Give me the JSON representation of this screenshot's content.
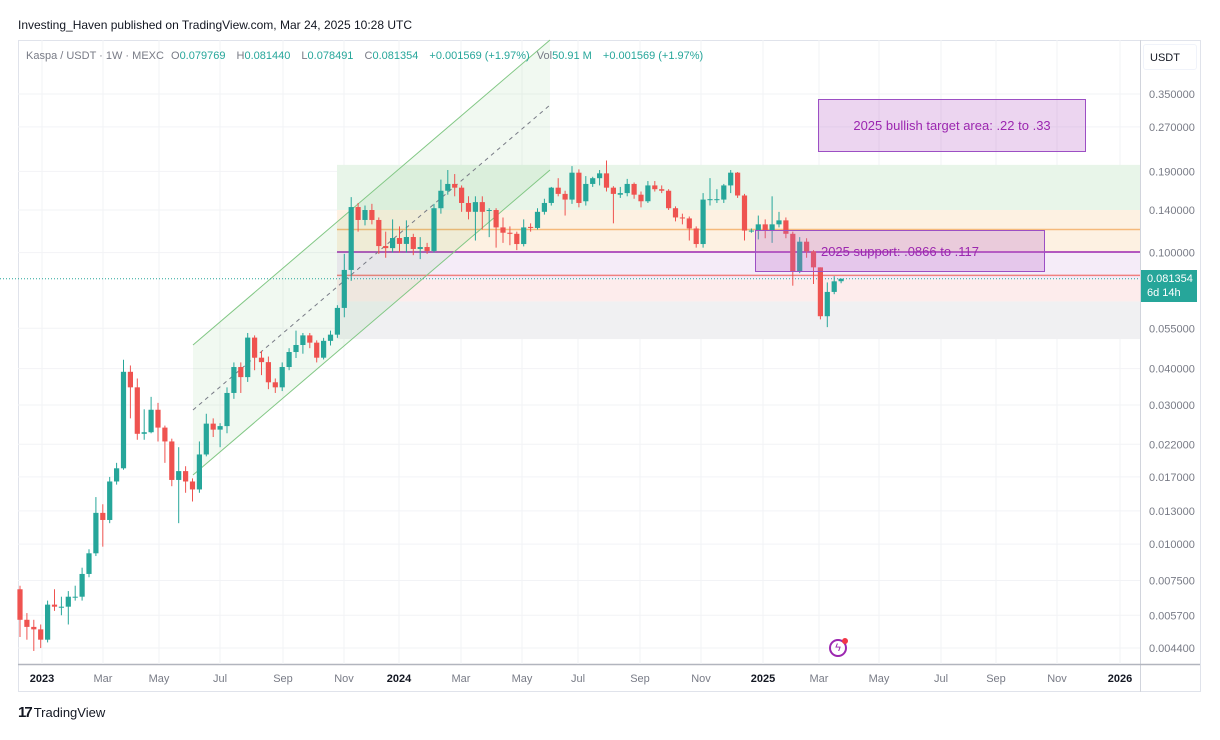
{
  "header": {
    "published": "Investing_Haven published on TradingView.com, Mar 24, 2025 10:28 UTC"
  },
  "legend": {
    "symbol": "Kaspa / USDT · 1W · MEXC",
    "o_label": "O",
    "o": "0.079769",
    "h_label": "H",
    "h": "0.081440",
    "l_label": "L",
    "l": "0.078491",
    "c_label": "C",
    "c": "0.081354",
    "change": "+0.001569 (+1.97%)",
    "vol_label": "Vol",
    "vol": "50.91 M",
    "vol_change": "+0.001569 (+1.97%)"
  },
  "price_axis": {
    "currency": "USDT",
    "last_price": "0.081354",
    "countdown": "6d 14h"
  },
  "annotations": {
    "target": "2025 bullish target area: .22 to .33",
    "support": "2025 support: .0866 to .117"
  },
  "footer": {
    "brand": "TradingView"
  },
  "colors": {
    "up": "#26a69a",
    "down": "#ef5350",
    "annotation": "#9c27b0"
  },
  "chart_data": {
    "type": "candlestick",
    "title": "Kaspa / USDT · 1W · MEXC",
    "interval": "1W",
    "y_scale": "log",
    "ylim": [
      0.0044,
      0.35
    ],
    "grid": true,
    "y_ticks": [
      "0.350000",
      "0.270000",
      "0.190000",
      "0.140000",
      "0.100000",
      "0.055000",
      "0.040000",
      "0.030000",
      "0.022000",
      "0.017000",
      "0.013000",
      "0.010000",
      "0.007500",
      "0.005700",
      "0.004400"
    ],
    "x_ticks": [
      "2023",
      "Mar",
      "May",
      "Jul",
      "Sep",
      "Nov",
      "2024",
      "Mar",
      "May",
      "Jul",
      "Sep",
      "Nov",
      "2025",
      "Mar",
      "May",
      "Jul",
      "Sep",
      "Nov",
      "2026"
    ],
    "ohlc_fields": [
      "open",
      "high",
      "low",
      "close"
    ],
    "candles": [
      [
        0.007,
        0.0072,
        0.0048,
        0.0055
      ],
      [
        0.0055,
        0.0058,
        0.0047,
        0.0052
      ],
      [
        0.0052,
        0.0055,
        0.0043,
        0.0051
      ],
      [
        0.0051,
        0.0053,
        0.0044,
        0.0047
      ],
      [
        0.0047,
        0.0064,
        0.0046,
        0.0062
      ],
      [
        0.0062,
        0.007,
        0.0059,
        0.0061
      ],
      [
        0.00605,
        0.0066,
        0.0057,
        0.0061
      ],
      [
        0.0061,
        0.0069,
        0.0053,
        0.0066
      ],
      [
        0.0066,
        0.0072,
        0.0064,
        0.0066
      ],
      [
        0.0066,
        0.0083,
        0.0064,
        0.0079
      ],
      [
        0.0079,
        0.0096,
        0.0077,
        0.0093
      ],
      [
        0.0093,
        0.0145,
        0.0091,
        0.0128
      ],
      [
        0.0128,
        0.0137,
        0.0098,
        0.0121
      ],
      [
        0.0121,
        0.017,
        0.0118,
        0.0164
      ],
      [
        0.0164,
        0.019,
        0.016,
        0.0182
      ],
      [
        0.0182,
        0.0429,
        0.018,
        0.039
      ],
      [
        0.039,
        0.041,
        0.027,
        0.0345
      ],
      [
        0.0345,
        0.037,
        0.0228,
        0.0239
      ],
      [
        0.0239,
        0.029,
        0.0228,
        0.0242
      ],
      [
        0.0242,
        0.032,
        0.024,
        0.0289
      ],
      [
        0.0289,
        0.0305,
        0.0225,
        0.0251
      ],
      [
        0.0251,
        0.0255,
        0.019,
        0.0225
      ],
      [
        0.0225,
        0.023,
        0.0158,
        0.0166
      ],
      [
        0.0166,
        0.0215,
        0.0118,
        0.0178
      ],
      [
        0.0178,
        0.0185,
        0.015,
        0.0164
      ],
      [
        0.0164,
        0.0168,
        0.014,
        0.0154
      ],
      [
        0.0154,
        0.0225,
        0.015,
        0.0203
      ],
      [
        0.0203,
        0.028,
        0.02,
        0.0259
      ],
      [
        0.0259,
        0.027,
        0.0233,
        0.0247
      ],
      [
        0.0247,
        0.026,
        0.0215,
        0.0254
      ],
      [
        0.0254,
        0.0345,
        0.024,
        0.033
      ],
      [
        0.033,
        0.042,
        0.0315,
        0.0405
      ],
      [
        0.0405,
        0.042,
        0.033,
        0.0374
      ],
      [
        0.0374,
        0.053,
        0.036,
        0.0511
      ],
      [
        0.0511,
        0.052,
        0.0395,
        0.0436
      ],
      [
        0.0436,
        0.046,
        0.038,
        0.0421
      ],
      [
        0.0421,
        0.044,
        0.034,
        0.0359
      ],
      [
        0.0359,
        0.037,
        0.033,
        0.0345
      ],
      [
        0.0345,
        0.042,
        0.0335,
        0.0405
      ],
      [
        0.0405,
        0.047,
        0.0395,
        0.0456
      ],
      [
        0.0456,
        0.054,
        0.0435,
        0.0482
      ],
      [
        0.0482,
        0.053,
        0.045,
        0.052
      ],
      [
        0.052,
        0.053,
        0.047,
        0.0491
      ],
      [
        0.0491,
        0.05,
        0.042,
        0.0436
      ],
      [
        0.0436,
        0.051,
        0.043,
        0.0498
      ],
      [
        0.0498,
        0.054,
        0.048,
        0.0523
      ],
      [
        0.0523,
        0.066,
        0.051,
        0.0646
      ],
      [
        0.0646,
        0.099,
        0.06,
        0.0872
      ],
      [
        0.0872,
        0.155,
        0.08,
        0.1433
      ],
      [
        0.1433,
        0.148,
        0.118,
        0.1294
      ],
      [
        0.1294,
        0.145,
        0.124,
        0.14
      ],
      [
        0.14,
        0.147,
        0.125,
        0.1294
      ],
      [
        0.1294,
        0.132,
        0.099,
        0.1053
      ],
      [
        0.1053,
        0.118,
        0.096,
        0.1036
      ],
      [
        0.1036,
        0.13,
        0.1,
        0.1122
      ],
      [
        0.1122,
        0.123,
        0.1,
        0.1071
      ],
      [
        0.1071,
        0.129,
        0.1,
        0.1131
      ],
      [
        0.1131,
        0.116,
        0.098,
        0.1029
      ],
      [
        0.1029,
        0.113,
        0.095,
        0.1045
      ],
      [
        0.1045,
        0.108,
        0.099,
        0.1013
      ],
      [
        0.1013,
        0.147,
        0.1,
        0.142
      ],
      [
        0.142,
        0.178,
        0.136,
        0.163
      ],
      [
        0.163,
        0.192,
        0.158,
        0.172
      ],
      [
        0.172,
        0.186,
        0.156,
        0.167
      ],
      [
        0.167,
        0.17,
        0.138,
        0.148
      ],
      [
        0.148,
        0.156,
        0.13,
        0.138
      ],
      [
        0.138,
        0.156,
        0.11,
        0.149
      ],
      [
        0.149,
        0.156,
        0.12,
        0.138
      ],
      [
        0.139,
        0.142,
        0.113,
        0.14
      ],
      [
        0.14,
        0.142,
        0.104,
        0.122
      ],
      [
        0.122,
        0.132,
        0.108,
        0.117
      ],
      [
        0.117,
        0.123,
        0.106,
        0.116
      ],
      [
        0.116,
        0.118,
        0.102,
        0.107
      ],
      [
        0.107,
        0.13,
        0.105,
        0.122
      ],
      [
        0.1225,
        0.126,
        0.118,
        0.1215
      ],
      [
        0.1215,
        0.142,
        0.12,
        0.138
      ],
      [
        0.138,
        0.153,
        0.135,
        0.148
      ],
      [
        0.148,
        0.168,
        0.145,
        0.167
      ],
      [
        0.167,
        0.18,
        0.156,
        0.159
      ],
      [
        0.159,
        0.163,
        0.134,
        0.152
      ],
      [
        0.152,
        0.198,
        0.147,
        0.188
      ],
      [
        0.188,
        0.193,
        0.143,
        0.148
      ],
      [
        0.15,
        0.183,
        0.145,
        0.172
      ],
      [
        0.172,
        0.182,
        0.168,
        0.18
      ],
      [
        0.18,
        0.192,
        0.17,
        0.187
      ],
      [
        0.187,
        0.207,
        0.162,
        0.167
      ],
      [
        0.167,
        0.169,
        0.126,
        0.159
      ],
      [
        0.158,
        0.168,
        0.154,
        0.16
      ],
      [
        0.16,
        0.179,
        0.156,
        0.172
      ],
      [
        0.172,
        0.174,
        0.153,
        0.158
      ],
      [
        0.158,
        0.162,
        0.143,
        0.15
      ],
      [
        0.15,
        0.176,
        0.148,
        0.17
      ],
      [
        0.17,
        0.176,
        0.162,
        0.165
      ],
      [
        0.165,
        0.17,
        0.16,
        0.163
      ],
      [
        0.163,
        0.165,
        0.14,
        0.142
      ],
      [
        0.142,
        0.144,
        0.128,
        0.132
      ],
      [
        0.132,
        0.136,
        0.125,
        0.131
      ],
      [
        0.131,
        0.133,
        0.11,
        0.121
      ],
      [
        0.121,
        0.123,
        0.104,
        0.107
      ],
      [
        0.107,
        0.16,
        0.104,
        0.152
      ],
      [
        0.1515,
        0.18,
        0.145,
        0.1525
      ],
      [
        0.152,
        0.165,
        0.148,
        0.1525
      ],
      [
        0.152,
        0.172,
        0.148,
        0.17
      ],
      [
        0.17,
        0.192,
        0.16,
        0.188
      ],
      [
        0.188,
        0.189,
        0.154,
        0.157
      ],
      [
        0.157,
        0.159,
        0.11,
        0.119
      ],
      [
        0.119,
        0.121,
        0.117,
        0.119
      ],
      [
        0.119,
        0.134,
        0.111,
        0.125
      ],
      [
        0.125,
        0.13,
        0.112,
        0.119
      ],
      [
        0.119,
        0.156,
        0.108,
        0.125
      ],
      [
        0.125,
        0.138,
        0.122,
        0.129
      ],
      [
        0.129,
        0.132,
        0.112,
        0.116
      ],
      [
        0.116,
        0.118,
        0.077,
        0.086
      ],
      [
        0.086,
        0.113,
        0.085,
        0.109
      ],
      [
        0.109,
        0.112,
        0.096,
        0.101
      ],
      [
        0.101,
        0.102,
        0.078,
        0.089
      ],
      [
        0.089,
        0.089,
        0.059,
        0.0605
      ],
      [
        0.0605,
        0.079,
        0.0555,
        0.0733
      ],
      [
        0.0733,
        0.083,
        0.072,
        0.0797
      ],
      [
        0.079769,
        0.08144,
        0.078491,
        0.081354
      ]
    ],
    "zones": [
      {
        "from": 0.14,
        "to": 0.2,
        "color": "#e8f5e9"
      },
      {
        "from": 0.1,
        "to": 0.14,
        "color": "#fdf1e2"
      },
      {
        "from": 0.081,
        "to": 0.1,
        "color": "#f5ecf8"
      },
      {
        "from": 0.068,
        "to": 0.081,
        "color": "#fdecec"
      },
      {
        "from": 0.0505,
        "to": 0.068,
        "color": "#f0f0f2"
      }
    ],
    "levels": [
      {
        "price": 0.12,
        "color": "#f5b97a"
      },
      {
        "price": 0.1005,
        "color": "#9c27b0"
      },
      {
        "price": 0.0835,
        "color": "#f08080"
      }
    ]
  }
}
